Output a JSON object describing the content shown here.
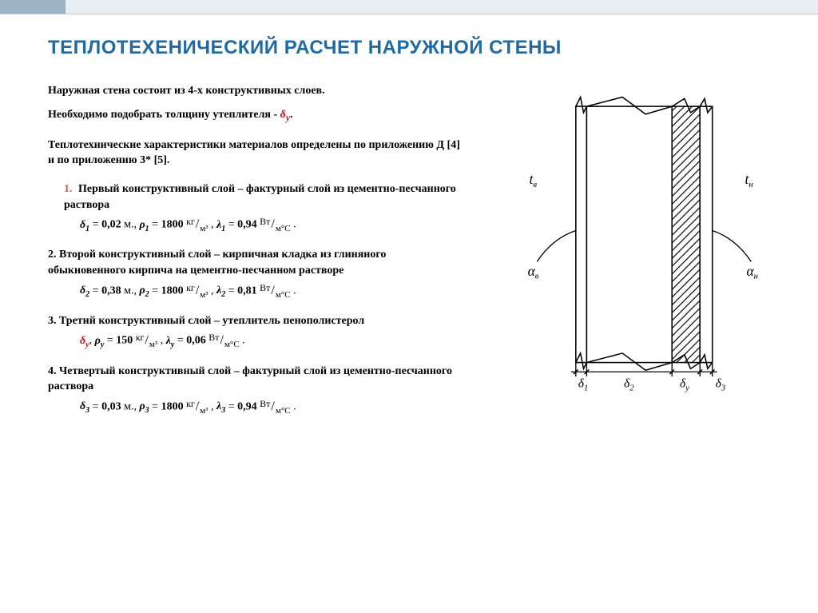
{
  "title": "ТЕПЛОТЕХЕНИЧЕСКИЙ РАСЧЕТ НАРУЖНОЙ СТЕНЫ",
  "intro": {
    "line1": "Наружная стена состоит из 4-х конструктивных слоев.",
    "line2_pre": "Необходимо подобрать толщину утеплителя - ",
    "line2_var": "δ",
    "line2_sub": "у",
    "line2_post": "."
  },
  "intro2": "Теплотехнические характеристики материалов определены по приложению Д [4] и по приложению 3* [5].",
  "layers": [
    {
      "num": "1.",
      "title": "Первый конструктивный слой – фактурный слой из цементно-песчанного раствора",
      "d_sym": "δ",
      "d_sub": "1",
      "d_val": "0,02",
      "d_unit": "м.",
      "p_sym": "ρ",
      "p_sub": "1",
      "p_val": "1800",
      "l_sym": "λ",
      "l_sub": "1",
      "l_val": "0,94",
      "is_red": false
    },
    {
      "num": "2.",
      "title": "Второй конструктивный слой – кирпичная кладка из глиняного обыкновенного кирпича на цементно-песчанном растворе",
      "d_sym": "δ",
      "d_sub": "2",
      "d_val": "0,38",
      "d_unit": "м.",
      "p_sym": "ρ",
      "p_sub": "2",
      "p_val": "1800",
      "l_sym": "λ",
      "l_sub": "2",
      "l_val": "0,81",
      "is_red": false
    },
    {
      "num": "3.",
      "title": "Третий конструктивный слой – утеплитель пенополистерол",
      "d_sym": "δ",
      "d_sub": "у",
      "d_val": "",
      "d_unit": "",
      "p_sym": "ρ",
      "p_sub": "у",
      "p_val": "150",
      "l_sym": "λ",
      "l_sub": "у",
      "l_val": "0,06",
      "is_red": true
    },
    {
      "num": "4.",
      "title": "Четвертый конструктивный слой – фактурный слой из цементно-песчанного раствора",
      "d_sym": "δ",
      "d_sub": "3",
      "d_val": "0,03",
      "d_unit": "м.",
      "p_sym": "ρ",
      "p_sub": "3",
      "p_val": "1800",
      "l_sym": "λ",
      "l_sub": "3",
      "l_val": "0,94",
      "is_red": false
    }
  ],
  "units": {
    "density_num": "кг",
    "density_den": "м³",
    "lambda_num": "Вт",
    "lambda_den": "м°С"
  },
  "diagram": {
    "background": "#ffffff",
    "stroke": "#000000",
    "stroke_width": 1.6,
    "hatch_color": "#000000",
    "labels": {
      "t_in": "t",
      "t_in_sub": "в",
      "t_out": "t",
      "t_out_sub": "н",
      "a_in": "α",
      "a_in_sub": "в",
      "a_out": "α",
      "a_out_sub": "н",
      "d1": "δ",
      "d1_sub": "1",
      "d2": "δ",
      "d2_sub": "2",
      "dy": "δ",
      "dy_sub": "у",
      "d3": "δ",
      "d3_sub": "3"
    },
    "font_size": 16,
    "sub_font_size": 11
  },
  "colors": {
    "title": "#1f6aa5",
    "accent_red": "#d00",
    "list_num": "#d06040",
    "top_bar_bg": "#e6edf3",
    "top_bar_dark": "#9db4c6"
  }
}
